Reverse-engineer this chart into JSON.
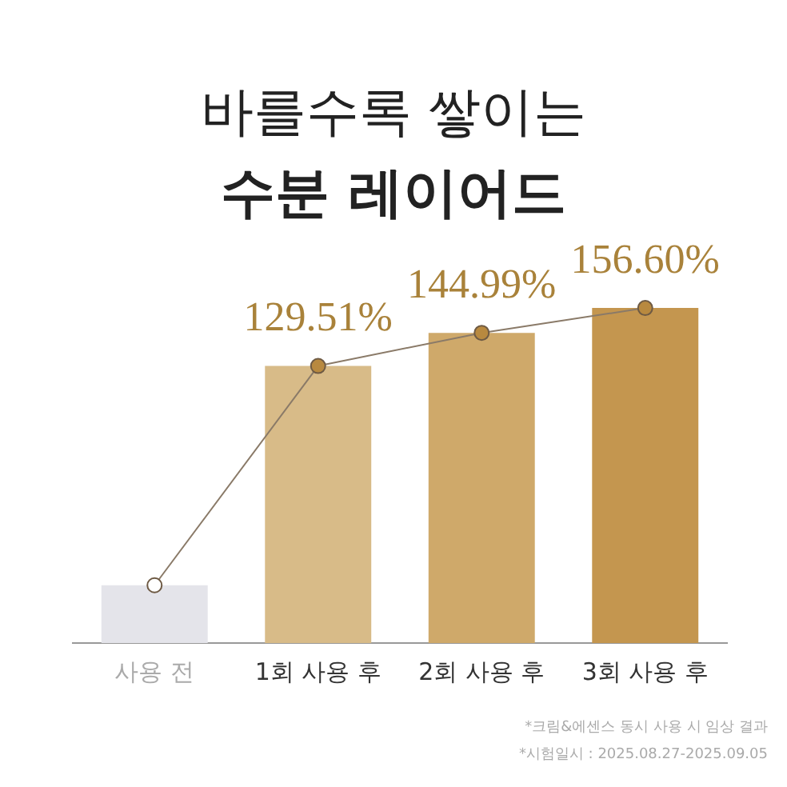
{
  "chart_data": {
    "type": "bar",
    "title": "바를수록 쌓이는",
    "subtitle": "수분 레이어드",
    "categories": [
      "사용 전",
      "1회 사용 후",
      "2회 사용 후",
      "3회 사용 후"
    ],
    "series": [
      {
        "values": [
          27,
          129.51,
          144.99,
          156.6
        ],
        "colors": [
          "#e4e4ea",
          "#d8bb88",
          "#cfa96a",
          "#c4964f"
        ],
        "value_labels": [
          null,
          "129.51%",
          "144.99%",
          "156.60%"
        ]
      },
      {
        "type": "line",
        "values": [
          27,
          129.51,
          144.99,
          156.6
        ],
        "color": "#8a7a68",
        "colors": [
          "#ffffff",
          "#b8893f",
          "#b8893f",
          "#b8893f"
        ],
        "marker": "circle"
      }
    ],
    "grid": false,
    "legend": false,
    "annotations": [
      "*크림&에센스 동시 사용 시 임상 결과",
      "*시험일시 : 2025.08.27-2025.09.05"
    ]
  }
}
